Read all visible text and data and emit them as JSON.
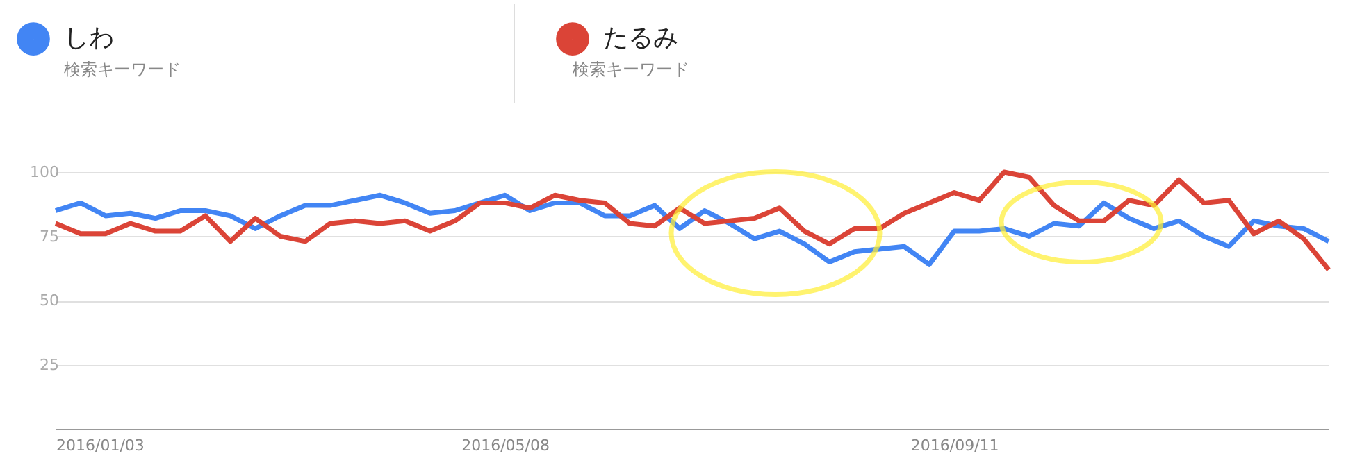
{
  "chart_data": {
    "type": "line",
    "x": [
      "2016-01-03",
      "2016-01-10",
      "2016-01-17",
      "2016-01-24",
      "2016-01-31",
      "2016-02-07",
      "2016-02-14",
      "2016-02-21",
      "2016-02-28",
      "2016-03-06",
      "2016-03-13",
      "2016-03-20",
      "2016-03-27",
      "2016-04-03",
      "2016-04-10",
      "2016-04-17",
      "2016-04-24",
      "2016-05-01",
      "2016-05-08",
      "2016-05-15",
      "2016-05-22",
      "2016-05-29",
      "2016-06-05",
      "2016-06-12",
      "2016-06-19",
      "2016-06-26",
      "2016-07-03",
      "2016-07-10",
      "2016-07-17",
      "2016-07-24",
      "2016-07-31",
      "2016-08-07",
      "2016-08-14",
      "2016-08-21",
      "2016-08-28",
      "2016-09-04",
      "2016-09-11",
      "2016-09-18",
      "2016-09-25",
      "2016-10-02",
      "2016-10-09",
      "2016-10-16",
      "2016-10-23",
      "2016-10-30",
      "2016-11-06",
      "2016-11-13",
      "2016-11-20",
      "2016-11-27",
      "2016-12-04",
      "2016-12-11",
      "2016-12-18",
      "2016-12-25"
    ],
    "series": [
      {
        "name": "しわ",
        "color": "#4285f4",
        "values": [
          85,
          88,
          83,
          84,
          82,
          85,
          85,
          83,
          78,
          83,
          87,
          87,
          89,
          91,
          88,
          84,
          85,
          88,
          91,
          85,
          88,
          88,
          83,
          83,
          87,
          78,
          85,
          80,
          74,
          77,
          72,
          65,
          69,
          70,
          71,
          64,
          77,
          77,
          78,
          75,
          80,
          79,
          88,
          82,
          78,
          81,
          75,
          71,
          81,
          79,
          78,
          73
        ]
      },
      {
        "name": "たるみ",
        "color": "#db4437",
        "values": [
          80,
          76,
          76,
          80,
          77,
          77,
          83,
          73,
          82,
          75,
          73,
          80,
          81,
          80,
          81,
          77,
          81,
          88,
          88,
          86,
          91,
          89,
          88,
          80,
          79,
          86,
          80,
          81,
          82,
          86,
          77,
          72,
          78,
          78,
          84,
          88,
          92,
          89,
          100,
          98,
          87,
          81,
          81,
          89,
          87,
          97,
          88,
          89,
          76,
          81,
          74,
          62
        ]
      }
    ],
    "annotations": [
      "検索キーワード",
      "検索キーワード"
    ],
    "xlim": [
      "2016-01-03",
      "2016-12-25"
    ],
    "xticks": [
      {
        "value": "2016-01-03",
        "label": "2016/01/03"
      },
      {
        "value": "2016-05-08",
        "label": "2016/05/08"
      },
      {
        "value": "2016-09-11",
        "label": "2016/09/11"
      }
    ],
    "ylim": [
      0,
      100
    ],
    "yticks": [
      25,
      50,
      75,
      100
    ],
    "grid": "y",
    "legend": "top",
    "marker": "none",
    "line_style": "solid"
  }
}
